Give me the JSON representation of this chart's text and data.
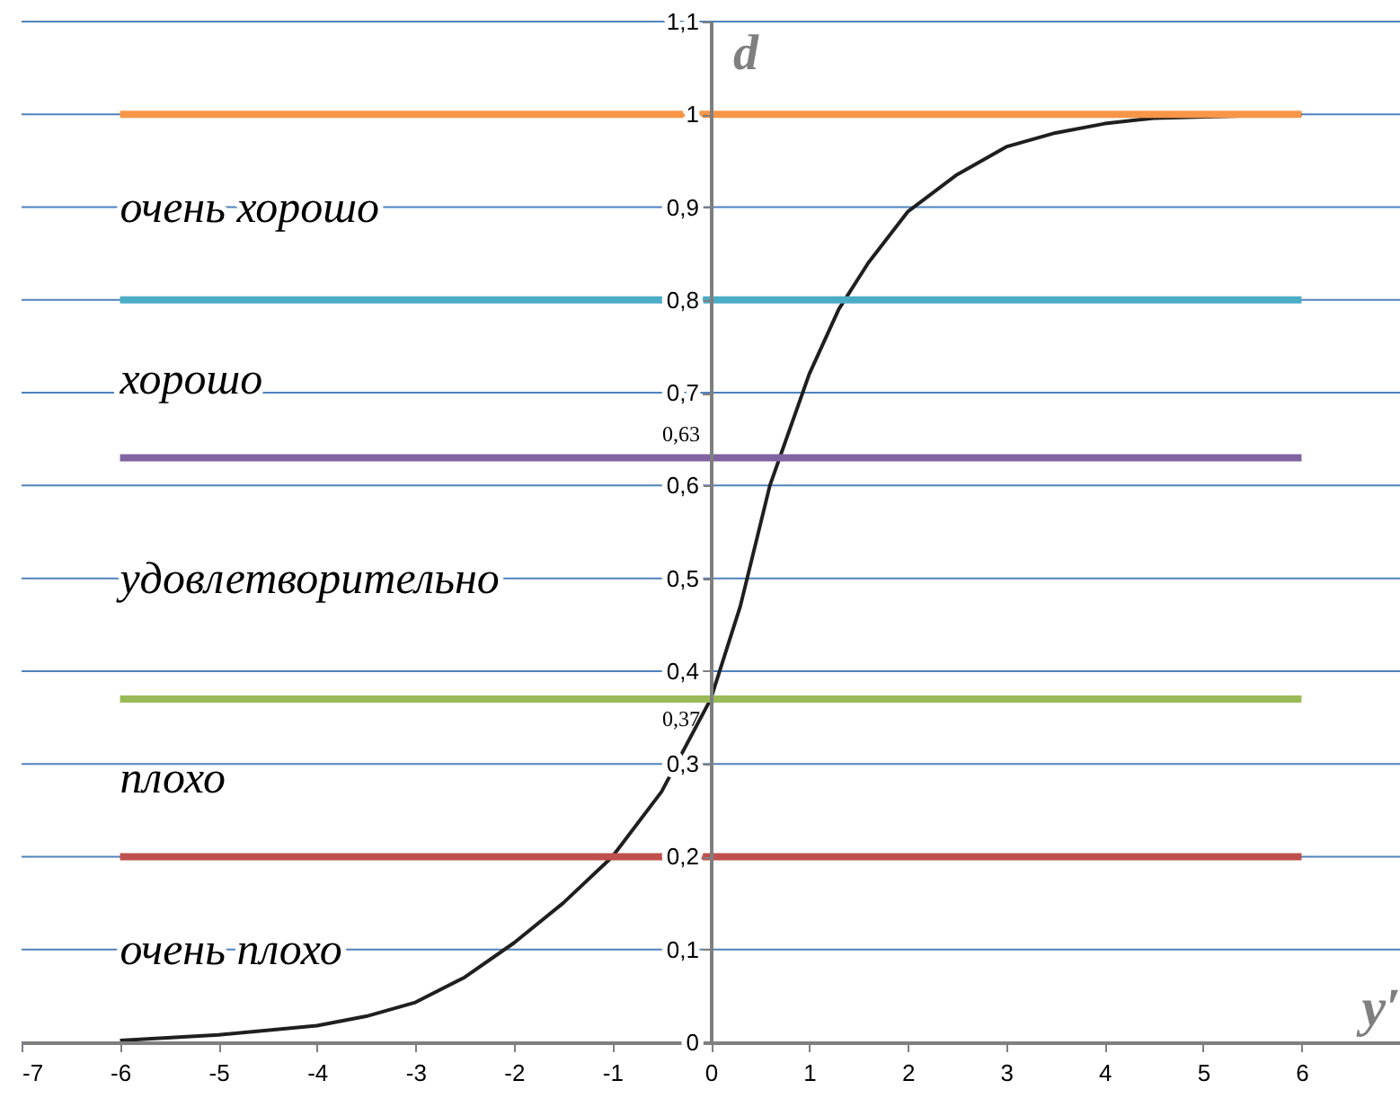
{
  "chart_data": {
    "type": "line",
    "xlabel": "y′",
    "ylabel": "d",
    "x": [
      -6,
      -5,
      -4,
      -3.5,
      -3,
      -2.5,
      -2,
      -1.5,
      -1,
      -0.5,
      0,
      0.3,
      0.6,
      1,
      1.3,
      1.6,
      2,
      2.5,
      3,
      3.5,
      4,
      4.5,
      6
    ],
    "series": [
      {
        "color": "#1f1f1f",
        "values": [
          0.002,
          0.008,
          0.018,
          0.028,
          0.043,
          0.07,
          0.107,
          0.15,
          0.2,
          0.27,
          0.37,
          0.47,
          0.6,
          0.72,
          0.79,
          0.84,
          0.895,
          0.935,
          0.965,
          0.98,
          0.99,
          0.996,
          1.0
        ]
      }
    ],
    "xlim": [
      -7,
      7
    ],
    "xticks": [
      -7,
      -6,
      -5,
      -4,
      -3,
      -2,
      -1,
      0,
      1,
      2,
      3,
      4,
      5,
      6
    ],
    "ylim": [
      0,
      1.1
    ],
    "yticks": [
      0,
      {
        "value": 0.1,
        "label": "0,1"
      },
      {
        "value": 0.2,
        "label": "0,2"
      },
      {
        "value": 0.3,
        "label": "0,3"
      },
      {
        "value": 0.4,
        "label": "0,4"
      },
      {
        "value": 0.5,
        "label": "0,5"
      },
      {
        "value": 0.6,
        "label": "0,6"
      },
      {
        "value": 0.7,
        "label": "0,7"
      },
      {
        "value": 0.8,
        "label": "0,8"
      },
      {
        "value": 0.9,
        "label": "0,9"
      },
      1,
      {
        "value": 1.1,
        "label": "1,1"
      }
    ],
    "grid": "y",
    "marker": "none",
    "ref_lines": [
      {
        "axis": "y",
        "value": 1,
        "color": "#f79646"
      },
      {
        "axis": "y",
        "value": 0.8,
        "color": "#4bacc6"
      },
      {
        "axis": "y",
        "value": 0.63,
        "label": "0,63",
        "color": "#8064a2"
      },
      {
        "axis": "y",
        "value": 0.37,
        "label": "0,37",
        "color": "#9bbb59"
      },
      {
        "axis": "y",
        "value": 0.2,
        "color": "#c0504d"
      }
    ],
    "annotations": [
      "очень хорошо",
      "хорошо",
      "удовлетворительно",
      "плохо",
      "очень плохо"
    ]
  }
}
